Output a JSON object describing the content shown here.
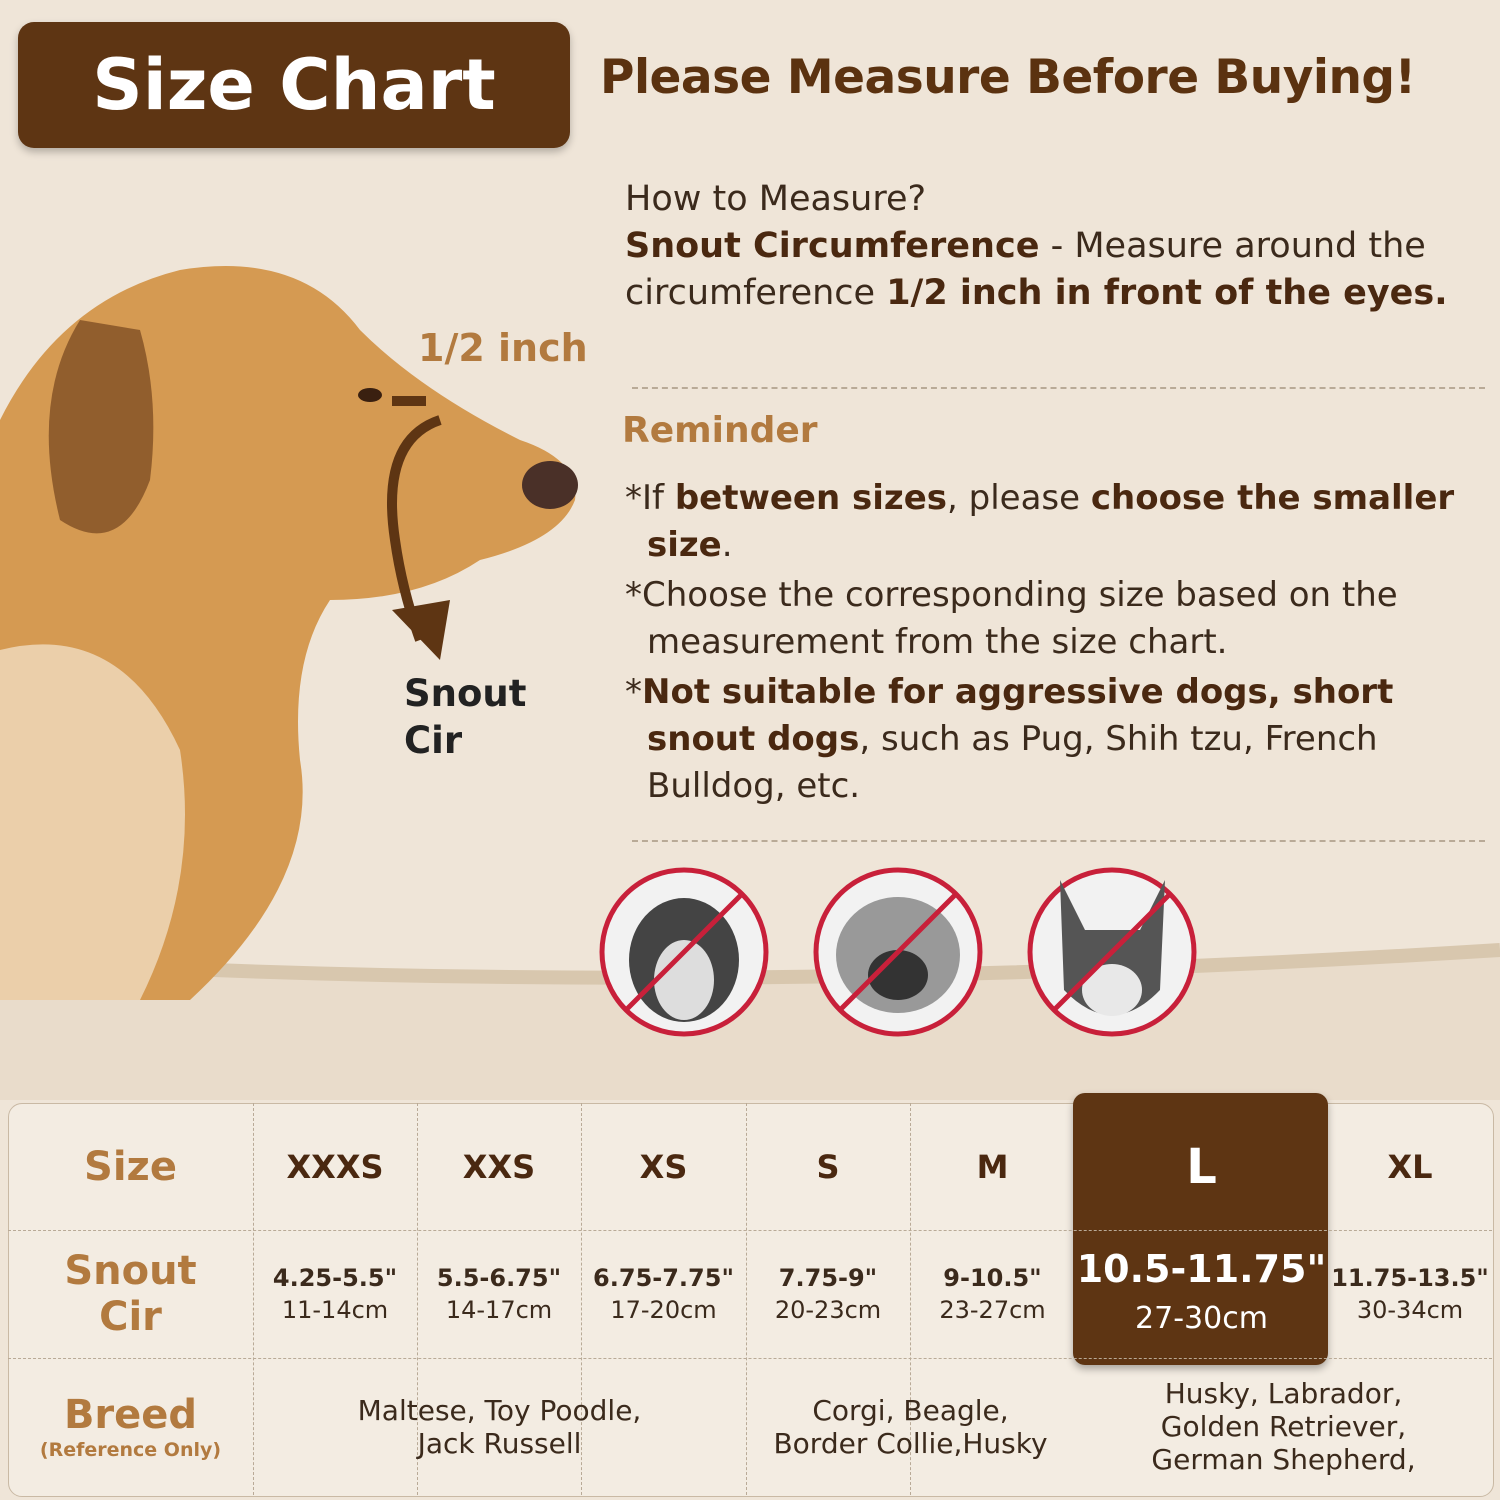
{
  "header": {
    "badge": "Size Chart",
    "headline": "Please Measure Before Buying!"
  },
  "diagram": {
    "top_label": "1/2 inch",
    "bottom_label": [
      "Snout",
      "Cir"
    ]
  },
  "how_to": {
    "question": "How to Measure?",
    "segments": [
      {
        "text": "Snout Circumference",
        "bold": true
      },
      {
        "text": " - Measure around the circumference ",
        "bold": false
      },
      {
        "text": "1/2 inch in front of the eyes.",
        "bold": true
      }
    ]
  },
  "reminder": {
    "title": "Reminder",
    "items": [
      [
        {
          "text": "*If ",
          "bold": false
        },
        {
          "text": "between sizes",
          "bold": true
        },
        {
          "text": ", please ",
          "bold": false
        },
        {
          "text": "choose the smaller size",
          "bold": true
        },
        {
          "text": ".",
          "bold": false
        }
      ],
      [
        {
          "text": "*Choose the corresponding size based on the measurement from the size chart.",
          "bold": false
        }
      ],
      [
        {
          "text": "*",
          "bold": false
        },
        {
          "text": "Not suitable for aggressive dogs, short snout dogs",
          "bold": true
        },
        {
          "text": ", such as Pug, Shih tzu, French Bulldog, etc.",
          "bold": false
        }
      ]
    ]
  },
  "table": {
    "size_label": "Size",
    "sizes": [
      "XXXS",
      "XXS",
      "XS",
      "S",
      "M",
      "L",
      "XL"
    ],
    "highlighted": 5,
    "snout_label": [
      "Snout",
      "Cir"
    ],
    "snout": [
      {
        "inch": "4.25-5.5\"",
        "cm": "11-14cm"
      },
      {
        "inch": "5.5-6.75\"",
        "cm": "14-17cm"
      },
      {
        "inch": "6.75-7.75\"",
        "cm": "17-20cm"
      },
      {
        "inch": "7.75-9\"",
        "cm": "20-23cm"
      },
      {
        "inch": "9-10.5\"",
        "cm": "23-27cm"
      },
      {
        "inch": "10.5-11.75\"",
        "cm": "27-30cm"
      },
      {
        "inch": "11.75-13.5\"",
        "cm": "30-34cm"
      }
    ],
    "breed_label": "Breed",
    "breed_note": "(Reference Only)",
    "breeds": [
      [
        "Maltese, Toy Poodle,",
        "Jack Russell"
      ],
      [
        "Corgi, Beagle,",
        "Border Collie,Husky"
      ],
      [
        "Husky, Labrador,",
        "Golden Retriever,",
        "German Shepherd,"
      ]
    ]
  }
}
